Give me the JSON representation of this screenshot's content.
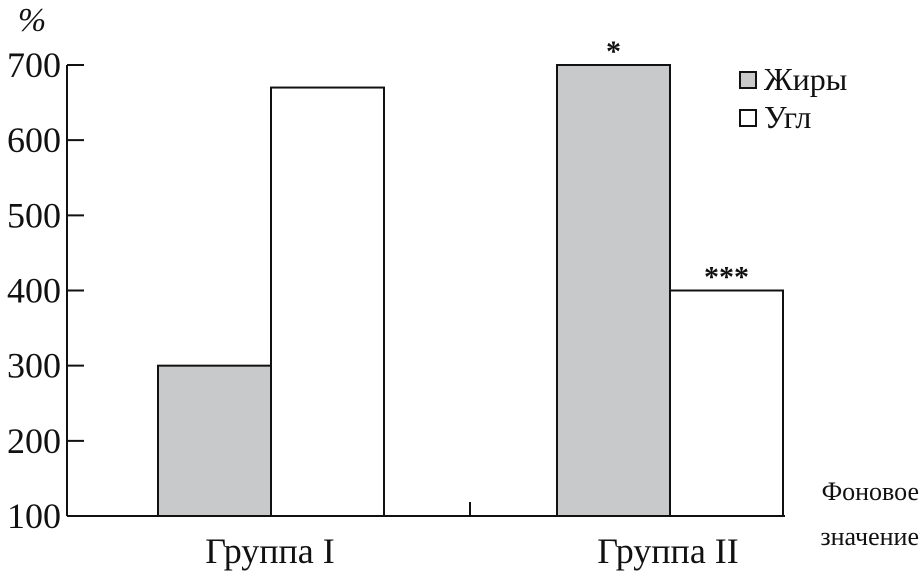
{
  "chart_data": {
    "type": "bar",
    "y_unit": "%",
    "categories": [
      "Группа I",
      "Группа II"
    ],
    "series": [
      {
        "name": "Жиры",
        "color": "#c8c9cb",
        "values": [
          300,
          700
        ]
      },
      {
        "name": "Угл",
        "color": "#ffffff",
        "values": [
          670,
          400
        ]
      }
    ],
    "annotations": [
      {
        "category": 1,
        "series": 0,
        "text": "*"
      },
      {
        "category": 1,
        "series": 1,
        "text": "***"
      }
    ],
    "y_ticks": [
      100,
      200,
      300,
      400,
      500,
      600,
      700
    ],
    "ylim": [
      100,
      700
    ],
    "baseline_note": [
      "Фоновое",
      "значение"
    ],
    "legend_position": "top-right",
    "grid": false
  }
}
